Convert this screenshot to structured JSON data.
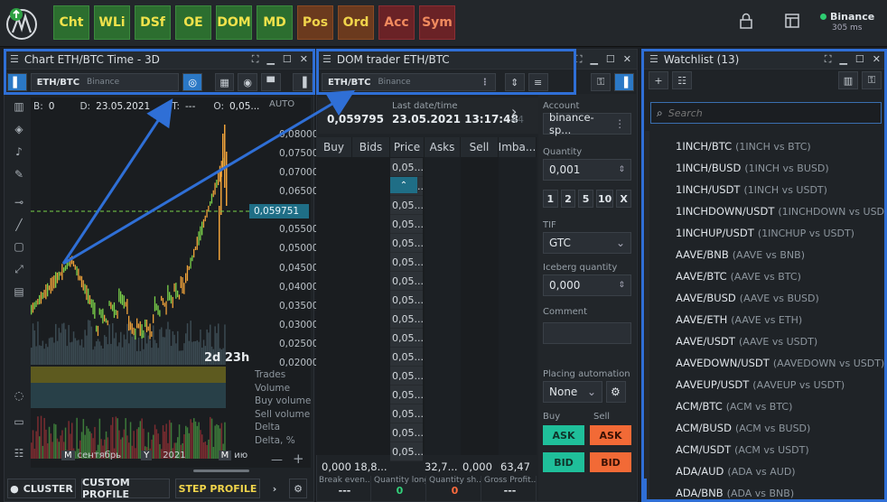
{
  "toolbar": {
    "buttons": [
      {
        "label": "Cht",
        "style": "green"
      },
      {
        "label": "WLi",
        "style": "green"
      },
      {
        "label": "DSf",
        "style": "green"
      },
      {
        "label": "OE",
        "style": "green"
      },
      {
        "label": "DOM",
        "style": "green"
      },
      {
        "label": "MD",
        "style": "green"
      },
      {
        "label": "Pos",
        "style": "brown"
      },
      {
        "label": "Ord",
        "style": "brown"
      },
      {
        "label": "Acc",
        "style": "red"
      },
      {
        "label": "Sym",
        "style": "red"
      }
    ],
    "connection": {
      "name": "Binance",
      "ping": "305 ms"
    }
  },
  "chart": {
    "title": "Chart ETH/BTC Time - 3D",
    "symbol": "ETH/BTC",
    "exchange": "Binance",
    "info": {
      "b_label": "B:",
      "b_val": "0",
      "d_label": "D:",
      "d_val": "23.05.2021",
      "t_label": "T:",
      "t_val": "---",
      "o_label": "O:",
      "o_val": "0,05..."
    },
    "auto_label": "AUTO",
    "price_ticks": [
      "0,080000",
      "0,075000",
      "0,070000",
      "0,065000",
      "0,055000",
      "0,050000",
      "0,045000",
      "0,040000",
      "0,035000",
      "0,030000",
      "0,025000",
      "0,020000"
    ],
    "current_price": "0,059751",
    "countdown": "2d 23h",
    "indicator_labels": [
      "Trades",
      "Volume",
      "Buy volume",
      "Sell volume",
      "Delta",
      "Delta, %"
    ],
    "x_labels": [
      {
        "tag": "M",
        "text": "сентябрь"
      },
      {
        "tag": "Y",
        "text": "2021"
      },
      {
        "tag": "M",
        "text": "ию"
      }
    ],
    "bottom_buttons": [
      "CLUSTER",
      "CUSTOM PROFILE",
      "STEP PROFILE"
    ]
  },
  "dom": {
    "title": "DOM trader ETH/BTC",
    "symbol": "ETH/BTC",
    "exchange": "Binance",
    "last_price": "0,059795",
    "last_date_label": "Last date/time",
    "last_date": "23.05.2021 13:17:48",
    "side_count": "44",
    "columns": [
      "Buy",
      "Bids",
      "Price",
      "Asks",
      "Sell",
      "Imba..."
    ],
    "prices": [
      "0,05...",
      "0,05...",
      "0,05...",
      "0,05...",
      "0,05...",
      "0,05...",
      "0,05...",
      "0,05...",
      "0,05...",
      "0,05...",
      "0,05...",
      "0,05...",
      "0,05...",
      "0,05...",
      "0,05...",
      "0,05..."
    ],
    "footer_values": [
      "0,000",
      "18,8...",
      "32,7...",
      "0,000",
      "63,47"
    ],
    "summary": [
      {
        "label": "Break even...",
        "value": "---",
        "color": "#e1e6ea"
      },
      {
        "label": "Quantity long",
        "value": "0",
        "color": "#33d17a"
      },
      {
        "label": "Quantity sh...",
        "value": "0",
        "color": "#ff6b3d"
      },
      {
        "label": "Gross Profit...",
        "value": "---",
        "color": "#e1e6ea"
      }
    ]
  },
  "order": {
    "account_label": "Account",
    "account": "binance-sp...",
    "quantity_label": "Quantity",
    "quantity": "0,001",
    "qty_buttons": [
      "1",
      "2",
      "5",
      "10",
      "X"
    ],
    "tif_label": "TIF",
    "tif": "GTC",
    "iceberg_label": "Iceberg quantity",
    "iceberg": "0,000",
    "comment_label": "Comment",
    "automation_label": "Placing automation",
    "automation": "None",
    "buy_label": "Buy",
    "sell_label": "Sell",
    "ask": "ASK",
    "bid": "BID"
  },
  "watchlist": {
    "title": "Watchlist (13)",
    "search_placeholder": "Search",
    "items": [
      {
        "s": "1INCH/BTC",
        "d": "(1INCH vs BTC)"
      },
      {
        "s": "1INCH/BUSD",
        "d": "(1INCH vs BUSD)"
      },
      {
        "s": "1INCH/USDT",
        "d": "(1INCH vs USDT)"
      },
      {
        "s": "1INCHDOWN/USDT",
        "d": "(1INCHDOWN vs USDT)"
      },
      {
        "s": "1INCHUP/USDT",
        "d": "(1INCHUP vs USDT)"
      },
      {
        "s": "AAVE/BNB",
        "d": "(AAVE vs BNB)"
      },
      {
        "s": "AAVE/BTC",
        "d": "(AAVE vs BTC)"
      },
      {
        "s": "AAVE/BUSD",
        "d": "(AAVE vs BUSD)"
      },
      {
        "s": "AAVE/ETH",
        "d": "(AAVE vs ETH)"
      },
      {
        "s": "AAVE/USDT",
        "d": "(AAVE vs USDT)"
      },
      {
        "s": "AAVEDOWN/USDT",
        "d": "(AAVEDOWN vs USDT)"
      },
      {
        "s": "AAVEUP/USDT",
        "d": "(AAVEUP vs USDT)"
      },
      {
        "s": "ACM/BTC",
        "d": "(ACM vs BTC)"
      },
      {
        "s": "ACM/BUSD",
        "d": "(ACM vs BUSD)"
      },
      {
        "s": "ACM/USDT",
        "d": "(ACM vs USDT)"
      },
      {
        "s": "ADA/AUD",
        "d": "(ADA vs AUD)"
      },
      {
        "s": "ADA/BNB",
        "d": "(ADA vs BNB)"
      }
    ]
  },
  "colors": {
    "accent": "#2f6fd6",
    "ask": "#f26a36",
    "bid": "#1fbf9a",
    "price_tag": "#1f6e86"
  }
}
